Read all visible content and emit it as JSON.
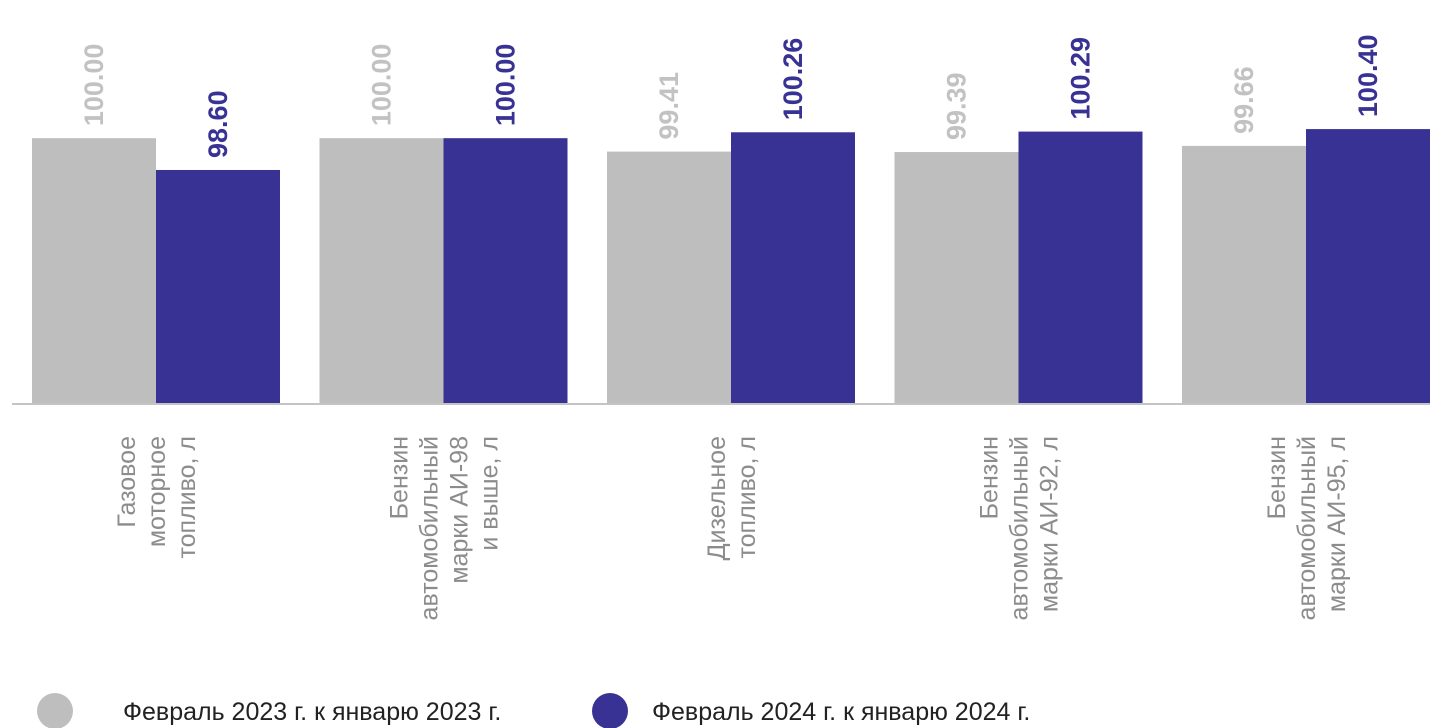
{
  "chart_data": {
    "type": "bar",
    "title": "",
    "xlabel": "",
    "ylabel": "",
    "categories": [
      [
        "Газовое",
        "моторное",
        "топливо, л"
      ],
      [
        "Бензин",
        "автомобильный",
        "марки АИ-98",
        "и выше, л"
      ],
      [
        "Дизельное",
        "топливо, л"
      ],
      [
        "Бензин",
        "автомобильный",
        "марки АИ-92, л"
      ],
      [
        "Бензин",
        "автомобильный",
        "марки АИ-95, л"
      ]
    ],
    "series": [
      {
        "name": "Февраль 2023 г. к  январю 2023 г.",
        "color": "#bebebe",
        "values": [
          100.0,
          100.0,
          99.41,
          99.39,
          99.66
        ],
        "labels": [
          "100.00",
          "100.00",
          "99.41",
          "99.39",
          "99.66"
        ]
      },
      {
        "name": "Февраль 2024 г. к январю 2024 г.",
        "color": "#373294",
        "values": [
          98.6,
          100.0,
          100.26,
          100.29,
          100.4
        ],
        "labels": [
          "98.60",
          "100.00",
          "100.26",
          "100.29",
          "100.40"
        ]
      }
    ],
    "ylim": [
      88.3,
      100.8
    ],
    "grid": false,
    "legend_position": "bottom"
  }
}
